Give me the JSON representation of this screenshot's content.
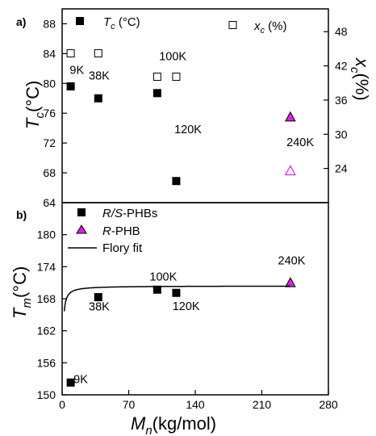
{
  "chart_data": [
    {
      "panel_tag": "a)",
      "type": "scatter",
      "xlim": [
        0,
        280
      ],
      "ylim": [
        64,
        90
      ],
      "yticks": [
        64,
        68,
        72,
        76,
        80,
        84,
        88
      ],
      "y_title": "T",
      "y_title_sub": "c",
      "y_title_unit": "(°C)",
      "y2lim": [
        18,
        52
      ],
      "y2ticks": [
        24,
        30,
        36,
        42,
        48
      ],
      "y2_title": "x",
      "y2_title_sub": "c",
      "y2_title_unit": "(%)",
      "legend": {
        "tc": {
          "label": "T",
          "sub": "c",
          "unit": " (°C)"
        },
        "xc": {
          "label": "x",
          "sub": "c",
          "unit": " (%)"
        }
      },
      "series": [
        {
          "role": "tc_racemic",
          "marker": "filled-square",
          "color": "#000000",
          "points": [
            {
              "x": 9,
              "y": 79.6
            },
            {
              "x": 38,
              "y": 78.0
            },
            {
              "x": 100,
              "y": 78.7
            },
            {
              "x": 120,
              "y": 66.9
            }
          ]
        },
        {
          "role": "tc_R",
          "marker": "filled-triangle",
          "color": "#e21ee2",
          "points": [
            {
              "x": 240,
              "y": 75.5
            }
          ]
        },
        {
          "role": "xc_racemic",
          "marker": "open-square",
          "color": "#000000",
          "points": [
            {
              "x": 9,
              "y": 44.2
            },
            {
              "x": 38,
              "y": 44.2
            },
            {
              "x": 100,
              "y": 40.1
            },
            {
              "x": 120,
              "y": 40.1
            }
          ]
        },
        {
          "role": "xc_R",
          "marker": "open-triangle",
          "color": "#e21ee2",
          "points": [
            {
              "x": 240,
              "y": 23.6
            }
          ]
        }
      ],
      "annotations": [
        {
          "text": "9K",
          "x": 8,
          "y": 81.3
        },
        {
          "text": "38K",
          "x": 28,
          "y": 80.5
        },
        {
          "text": "100K",
          "x": 102,
          "y": 83.1
        },
        {
          "text": "120K",
          "x": 118,
          "y": 73.3
        },
        {
          "text": "240K",
          "x": 236,
          "y": 71.6
        }
      ]
    },
    {
      "panel_tag": "b)",
      "type": "scatter",
      "xlim": [
        0,
        280
      ],
      "xticks": [
        0,
        70,
        140,
        210,
        280
      ],
      "ylim": [
        150,
        186
      ],
      "yticks": [
        150,
        156,
        162,
        168,
        174,
        180
      ],
      "y_title": "T",
      "y_title_sub": "m",
      "y_title_unit": "(°C)",
      "x_title": "M",
      "x_title_sub": "n",
      "x_title_unit": "(kg/mol)",
      "legend": [
        {
          "marker": "filled-square",
          "italic": "R/S",
          "text": "-PHBs"
        },
        {
          "marker": "filled-triangle",
          "italic": "R",
          "text": "-PHB"
        },
        {
          "marker": "line",
          "italic": "",
          "text": "Flory fit"
        }
      ],
      "series": [
        {
          "role": "tm_racemic",
          "marker": "filled-square",
          "color": "#000000",
          "points": [
            {
              "x": 9,
              "y": 152.3
            },
            {
              "x": 38,
              "y": 168.3
            },
            {
              "x": 100,
              "y": 169.7
            },
            {
              "x": 120,
              "y": 169.1
            }
          ]
        },
        {
          "role": "tm_R",
          "marker": "filled-triangle",
          "color": "#e21ee2",
          "points": [
            {
              "x": 240,
              "y": 171.0
            }
          ]
        },
        {
          "role": "flory_fit",
          "marker": "line",
          "color": "#000000",
          "tm0": 170.4,
          "k": 10.9,
          "x_start": 2.3,
          "x_end": 240
        }
      ],
      "annotations": [
        {
          "text": "9K",
          "x": 12,
          "y": 152.2
        },
        {
          "text": "38K",
          "x": 28,
          "y": 165.8
        },
        {
          "text": "100K",
          "x": 92,
          "y": 171.4
        },
        {
          "text": "120K",
          "x": 116,
          "y": 165.9
        },
        {
          "text": "240K",
          "x": 227,
          "y": 174.4
        }
      ]
    }
  ]
}
